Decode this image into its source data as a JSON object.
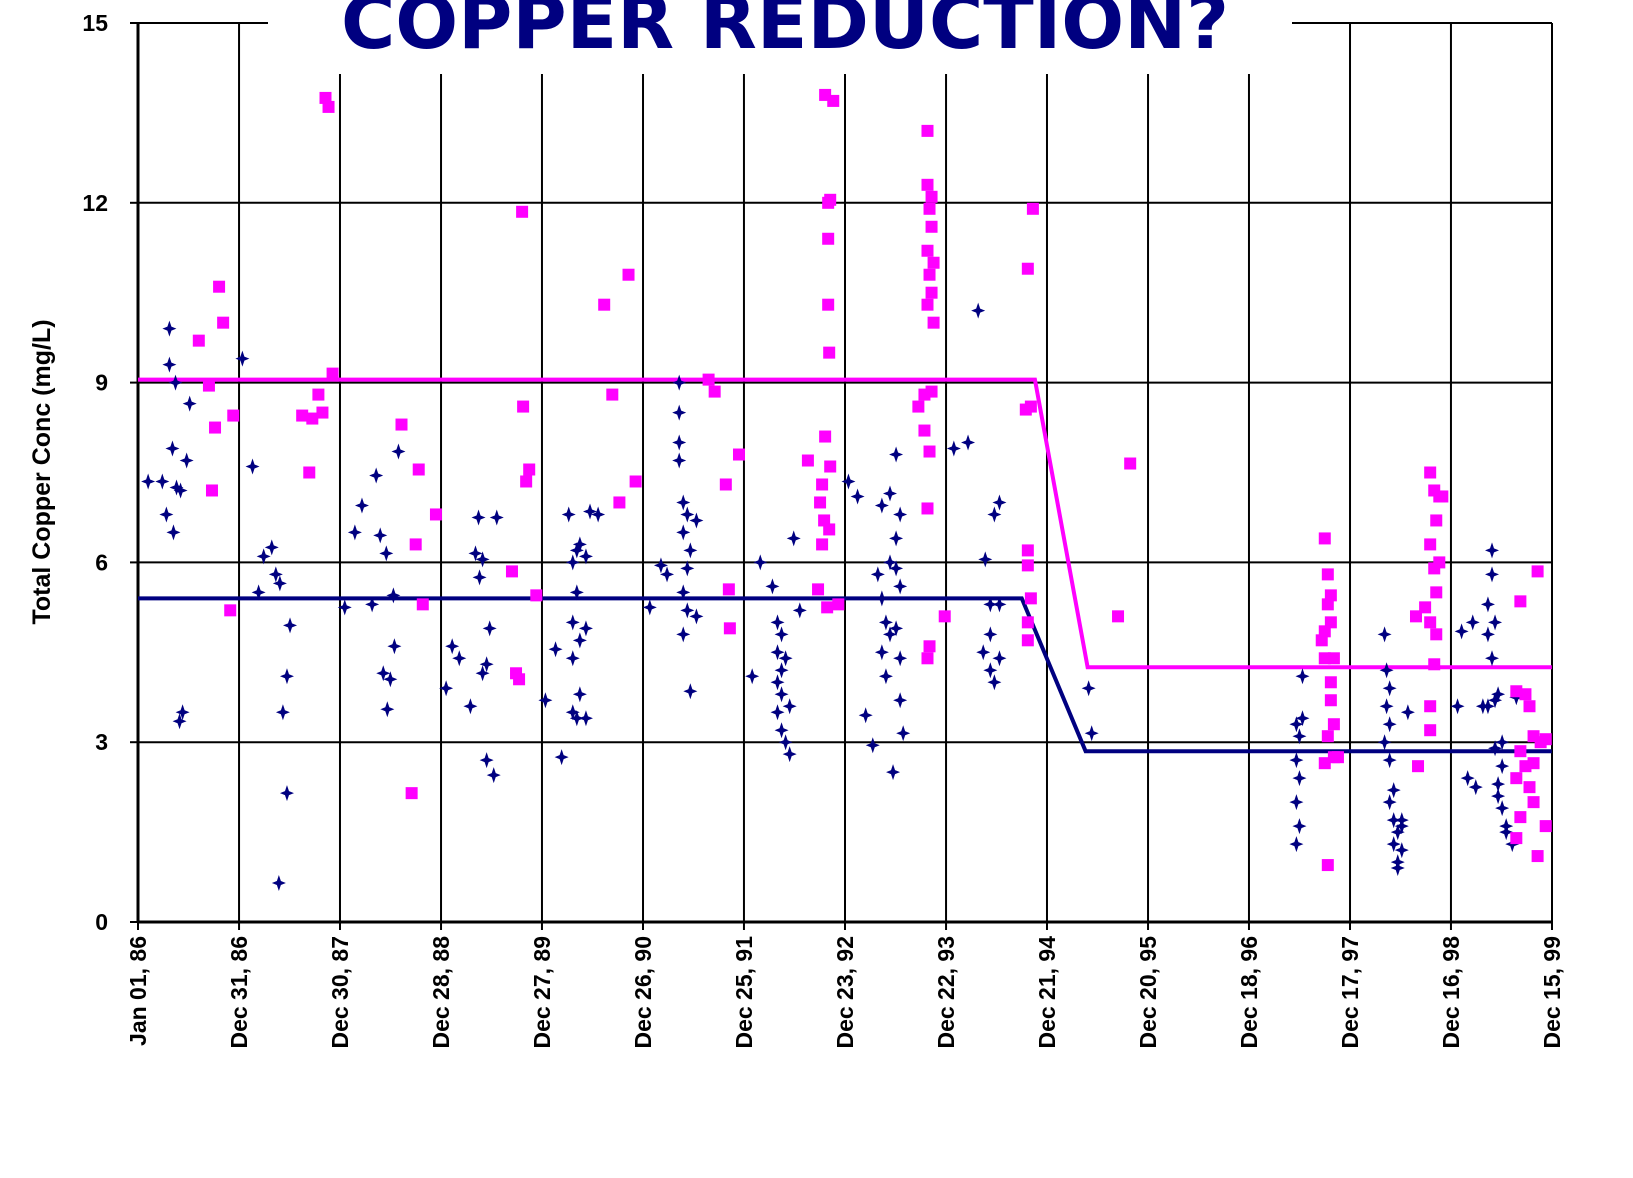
{
  "chart_data": {
    "type": "scatter",
    "title": "COPPER REDUCTION?",
    "y_label": "Total Copper Conc (mg/L)",
    "xlim": [
      1986,
      1999.952
    ],
    "ylim": [
      0,
      15
    ],
    "yticks": [
      0,
      3,
      6,
      9,
      12,
      15
    ],
    "xticks": [
      {
        "value": 1986,
        "label": "Jan 01, 86"
      },
      {
        "value": 1986.997,
        "label": "Dec 31, 86"
      },
      {
        "value": 1987.993,
        "label": "Dec 30, 87"
      },
      {
        "value": 1988.99,
        "label": "Dec 28, 88"
      },
      {
        "value": 1989.986,
        "label": "Dec 27, 89"
      },
      {
        "value": 1990.983,
        "label": "Dec 26, 90"
      },
      {
        "value": 1991.979,
        "label": "Dec 25, 91"
      },
      {
        "value": 1992.976,
        "label": "Dec 23, 92"
      },
      {
        "value": 1993.973,
        "label": "Dec 22, 93"
      },
      {
        "value": 1994.969,
        "label": "Dec 21, 94"
      },
      {
        "value": 1995.966,
        "label": "Dec 20, 95"
      },
      {
        "value": 1996.962,
        "label": "Dec 18, 96"
      },
      {
        "value": 1997.959,
        "label": "Dec 17, 97"
      },
      {
        "value": 1998.955,
        "label": "Dec 16, 98"
      },
      {
        "value": 1999.952,
        "label": "Dec 15, 99"
      }
    ],
    "grid": true,
    "series": [
      {
        "color": "#000080",
        "marker": "diamond",
        "x": [
          1986.1,
          1986.24,
          1986.28,
          1986.31,
          1986.31,
          1986.34,
          1986.35,
          1986.37,
          1986.38,
          1986.42,
          1986.41,
          1986.44,
          1986.48,
          1986.51,
          1987.03,
          1987.13,
          1987.19,
          1987.24,
          1987.32,
          1987.36,
          1987.4,
          1987.43,
          1987.39,
          1987.47,
          1987.47,
          1987.5,
          1988.04,
          1988.14,
          1988.21,
          1988.31,
          1988.35,
          1988.39,
          1988.42,
          1988.45,
          1988.46,
          1988.49,
          1988.52,
          1988.53,
          1988.57,
          1989.04,
          1989.1,
          1989.17,
          1989.28,
          1989.33,
          1989.36,
          1989.37,
          1989.4,
          1989.4,
          1989.44,
          1989.44,
          1989.47,
          1989.51,
          1989.54,
          1990.02,
          1990.12,
          1990.18,
          1990.25,
          1990.29,
          1990.29,
          1990.29,
          1990.29,
          1990.33,
          1990.33,
          1990.33,
          1990.36,
          1990.36,
          1990.36,
          1990.42,
          1990.42,
          1990.42,
          1990.46,
          1990.54,
          1991.05,
          1991.16,
          1991.22,
          1991.34,
          1991.34,
          1991.34,
          1991.34,
          1991.38,
          1991.38,
          1991.38,
          1991.38,
          1991.42,
          1991.42,
          1991.42,
          1991.45,
          1991.45,
          1991.51,
          1991.51,
          1992.06,
          1992.14,
          1992.26,
          1992.31,
          1992.31,
          1992.31,
          1992.31,
          1992.35,
          1992.35,
          1992.35,
          1992.35,
          1992.39,
          1992.39,
          1992.43,
          1992.43,
          1992.47,
          1992.53,
          1993.01,
          1993.1,
          1993.18,
          1993.25,
          1993.3,
          1993.34,
          1993.34,
          1993.34,
          1993.38,
          1993.38,
          1993.42,
          1993.42,
          1993.42,
          1993.45,
          1993.48,
          1993.48,
          1993.48,
          1993.48,
          1993.52,
          1993.52,
          1993.52,
          1993.52,
          1993.55,
          1994.05,
          1994.19,
          1994.29,
          1994.36,
          1994.34,
          1994.41,
          1994.41,
          1994.41,
          1994.45,
          1994.45,
          1994.5,
          1994.5,
          1994.5,
          1995.38,
          1995.41,
          1997.43,
          1997.43,
          1997.43,
          1997.43,
          1997.46,
          1997.46,
          1997.46,
          1997.49,
          1997.49,
          1998.3,
          1998.3,
          1998.32,
          1998.32,
          1998.35,
          1998.35,
          1998.35,
          1998.35,
          1998.39,
          1998.39,
          1998.39,
          1998.43,
          1998.43,
          1998.43,
          1998.47,
          1998.47,
          1998.47,
          1998.53,
          1999.02,
          1999.06,
          1999.12,
          1999.17,
          1999.2,
          1999.27,
          1999.32,
          1999.32,
          1999.32,
          1999.36,
          1999.36,
          1999.36,
          1999.39,
          1999.39,
          1999.39,
          1999.42,
          1999.42,
          1999.42,
          1999.46,
          1999.46,
          1999.46,
          1999.5,
          1999.5,
          1999.56,
          1999.6
        ],
        "values": [
          7.35,
          7.35,
          6.8,
          9.9,
          9.3,
          7.9,
          6.5,
          9.0,
          7.25,
          7.2,
          3.35,
          3.5,
          7.7,
          8.65,
          9.4,
          7.6,
          5.5,
          6.1,
          6.25,
          5.8,
          5.65,
          3.5,
          0.65,
          4.1,
          2.15,
          4.95,
          5.25,
          6.5,
          6.95,
          5.3,
          7.45,
          6.45,
          4.15,
          6.15,
          3.55,
          4.05,
          5.45,
          4.6,
          7.85,
          3.9,
          4.6,
          4.4,
          3.6,
          6.15,
          6.75,
          5.75,
          6.05,
          4.15,
          4.3,
          2.7,
          4.9,
          2.45,
          6.75,
          3.7,
          4.55,
          2.75,
          6.8,
          5.0,
          6.0,
          4.4,
          3.5,
          5.5,
          6.2,
          3.4,
          4.7,
          6.3,
          3.8,
          4.9,
          6.1,
          3.4,
          6.85,
          6.8,
          5.25,
          5.95,
          5.8,
          9.0,
          8.5,
          8.0,
          7.7,
          7.0,
          6.5,
          5.5,
          4.8,
          6.8,
          5.9,
          5.2,
          3.85,
          6.2,
          6.7,
          5.1,
          4.1,
          6.0,
          5.6,
          5.0,
          4.5,
          4.0,
          3.5,
          4.8,
          4.2,
          3.8,
          3.2,
          4.4,
          3.0,
          2.8,
          3.6,
          6.4,
          5.2,
          7.35,
          7.1,
          3.45,
          2.95,
          5.8,
          6.95,
          5.4,
          4.5,
          4.1,
          5.0,
          7.15,
          6.0,
          4.8,
          2.5,
          7.8,
          6.4,
          5.9,
          4.9,
          6.8,
          5.6,
          3.7,
          4.4,
          3.15,
          7.9,
          8.0,
          10.2,
          6.05,
          4.5,
          5.3,
          4.8,
          4.2,
          6.8,
          4.0,
          7.0,
          5.3,
          4.4,
          3.9,
          3.15,
          3.3,
          2.0,
          1.3,
          2.7,
          3.1,
          1.6,
          2.4,
          4.1,
          3.4,
          4.8,
          3.0,
          3.6,
          4.2,
          3.3,
          2.7,
          2.0,
          3.9,
          1.7,
          1.3,
          2.2,
          1.0,
          1.5,
          0.9,
          1.7,
          1.2,
          1.6,
          3.5,
          3.6,
          4.85,
          2.4,
          5.0,
          2.25,
          3.6,
          5.3,
          4.8,
          3.6,
          6.2,
          5.8,
          4.4,
          5.0,
          3.7,
          2.9,
          3.8,
          2.3,
          2.1,
          3.0,
          1.9,
          2.6,
          1.6,
          1.5,
          1.3,
          3.75
        ]
      },
      {
        "color": "#ff00ff",
        "marker": "square",
        "x": [
          1986.6,
          1986.7,
          1986.73,
          1986.76,
          1986.8,
          1986.84,
          1986.91,
          1986.94,
          1987.62,
          1987.69,
          1987.72,
          1987.78,
          1987.82,
          1987.85,
          1987.88,
          1987.92,
          1988.6,
          1988.7,
          1988.74,
          1988.77,
          1988.81,
          1988.94,
          1989.69,
          1989.73,
          1989.76,
          1989.79,
          1989.8,
          1989.83,
          1989.86,
          1989.93,
          1990.6,
          1990.68,
          1990.75,
          1990.84,
          1990.91,
          1991.63,
          1991.69,
          1991.8,
          1991.83,
          1991.84,
          1991.93,
          1992.61,
          1992.71,
          1992.73,
          1992.75,
          1992.75,
          1992.77,
          1992.78,
          1992.78,
          1992.8,
          1992.81,
          1992.81,
          1992.81,
          1992.82,
          1992.82,
          1992.83,
          1992.83,
          1992.86,
          1992.91,
          1993.7,
          1993.76,
          1993.76,
          1993.79,
          1993.79,
          1993.79,
          1993.79,
          1993.79,
          1993.79,
          1993.81,
          1993.81,
          1993.81,
          1993.81,
          1993.83,
          1993.83,
          1993.83,
          1993.83,
          1993.85,
          1993.85,
          1993.96,
          1994.76,
          1994.78,
          1994.78,
          1994.78,
          1994.78,
          1994.78,
          1994.81,
          1994.81,
          1994.83,
          1995.67,
          1995.79,
          1997.68,
          1997.71,
          1997.71,
          1997.71,
          1997.71,
          1997.74,
          1997.74,
          1997.74,
          1997.74,
          1997.77,
          1997.77,
          1997.77,
          1997.77,
          1997.8,
          1997.8,
          1997.8,
          1997.84,
          1998.61,
          1998.63,
          1998.7,
          1998.75,
          1998.75,
          1998.75,
          1998.75,
          1998.75,
          1998.79,
          1998.79,
          1998.79,
          1998.81,
          1998.81,
          1998.81,
          1998.84,
          1998.84,
          1998.87,
          1999.6,
          1999.6,
          1999.6,
          1999.64,
          1999.64,
          1999.64,
          1999.69,
          1999.69,
          1999.73,
          1999.73,
          1999.77,
          1999.77,
          1999.77,
          1999.81,
          1999.81,
          1999.84,
          1999.89,
          1999.89
        ],
        "values": [
          9.7,
          8.95,
          7.2,
          8.25,
          10.6,
          10.0,
          5.2,
          8.45,
          8.45,
          7.5,
          8.4,
          8.8,
          8.5,
          13.75,
          13.6,
          9.15,
          8.3,
          2.15,
          6.3,
          7.55,
          5.3,
          6.8,
          5.85,
          4.15,
          4.05,
          11.85,
          8.6,
          7.35,
          7.55,
          5.45,
          10.3,
          8.8,
          7.0,
          10.8,
          7.35,
          9.05,
          8.85,
          7.3,
          5.55,
          4.9,
          7.8,
          7.7,
          5.55,
          7.0,
          7.3,
          6.3,
          6.7,
          13.8,
          8.1,
          5.25,
          11.4,
          10.3,
          12.0,
          9.5,
          6.55,
          12.05,
          7.6,
          13.7,
          5.3,
          8.6,
          8.8,
          8.2,
          13.2,
          12.3,
          11.2,
          10.3,
          6.9,
          4.4,
          11.9,
          10.8,
          7.85,
          4.6,
          12.1,
          11.6,
          10.5,
          8.85,
          10.0,
          11.0,
          5.1,
          8.55,
          5.95,
          5.0,
          6.2,
          4.7,
          10.9,
          5.4,
          8.6,
          11.9,
          5.1,
          7.65,
          4.7,
          6.4,
          4.85,
          2.65,
          4.4,
          5.8,
          5.3,
          0.95,
          3.1,
          5.45,
          5.0,
          4.0,
          3.7,
          4.4,
          3.3,
          2.75,
          2.75,
          5.1,
          2.6,
          5.25,
          7.5,
          6.3,
          5.0,
          3.6,
          3.2,
          7.2,
          5.9,
          4.3,
          6.7,
          5.5,
          4.8,
          7.1,
          6.0,
          7.1,
          3.85,
          2.4,
          1.4,
          5.35,
          2.85,
          1.75,
          3.8,
          2.6,
          3.6,
          2.25,
          3.1,
          2.65,
          2.0,
          5.85,
          1.1,
          3.0,
          3.05,
          1.6
        ]
      }
    ],
    "lines": [
      {
        "color": "#000080",
        "x": [
          1986,
          1994.72,
          1995.35,
          1999.95
        ],
        "values": [
          5.4,
          5.4,
          2.85,
          2.85
        ]
      },
      {
        "color": "#ff00ff",
        "x": [
          1986,
          1994.85,
          1995.37,
          1999.95
        ],
        "values": [
          9.05,
          9.05,
          4.25,
          4.25
        ]
      }
    ]
  }
}
